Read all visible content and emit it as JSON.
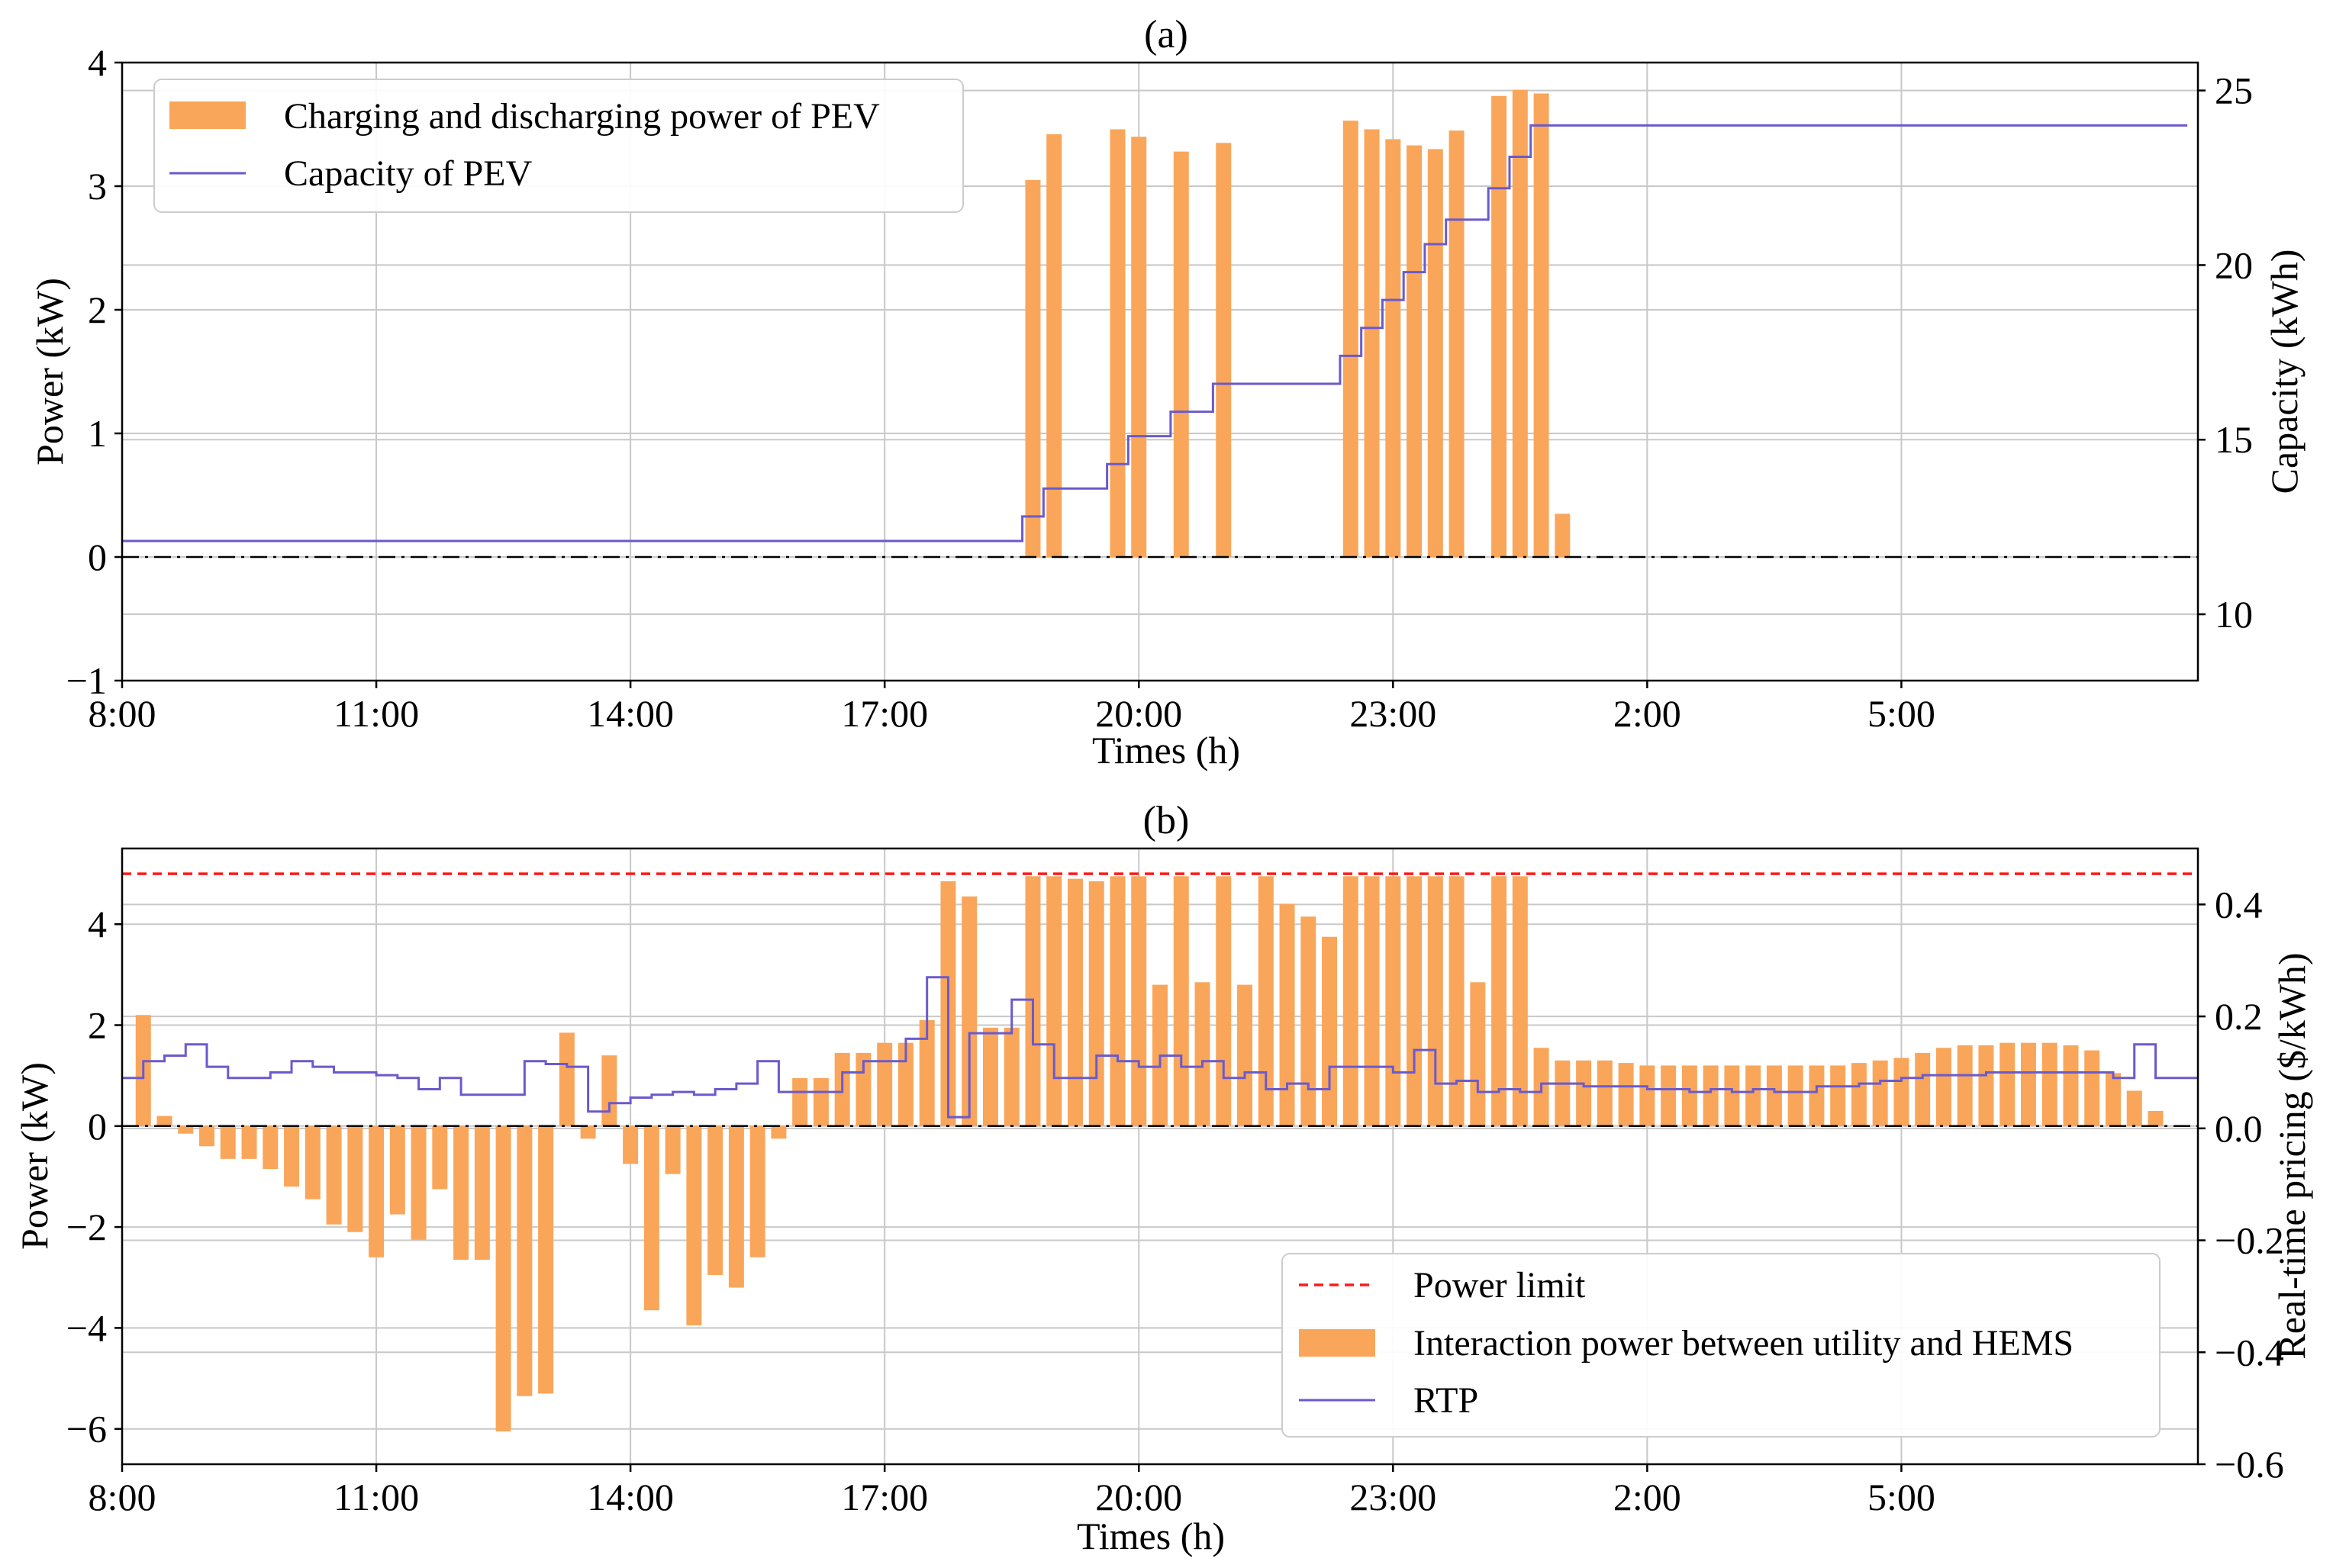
{
  "colors": {
    "bar": "#f9a65a",
    "line": "#6a5acd",
    "limit": "#ff1a1a",
    "grid": "#c8c8c8",
    "zero": "#000000"
  },
  "chart_data": [
    {
      "type": "bar+line",
      "title": "(a)",
      "xlabel": "Times (h)",
      "ylabel": "Power (kW)",
      "ylabel_right": "Capacity (kWh)",
      "ylim": [
        -1,
        4
      ],
      "ylim_right": [
        8.1,
        25.8
      ],
      "xlim": [
        8.0,
        32.5
      ],
      "xticks": [
        8,
        11,
        14,
        17,
        20,
        23,
        26,
        29
      ],
      "xticklabels": [
        "8:00",
        "11:00",
        "14:00",
        "17:00",
        "20:00",
        "23:00",
        "2:00",
        "5:00"
      ],
      "yticks": [
        -1,
        0,
        1,
        2,
        3,
        4
      ],
      "yticklabels": [
        "−1",
        "0",
        "1",
        "2",
        "3",
        "4"
      ],
      "yticks_right": [
        10,
        15,
        20,
        25
      ],
      "yticklabels_right": [
        "10",
        "15",
        "20",
        "25"
      ],
      "legend": {
        "position": "upper-left",
        "bar_label": "Charging and discharging power of PEV",
        "line_label": "Capacity of PEV"
      },
      "bar_series": {
        "name": "Charging and discharging power of PEV",
        "x": [
          18.75,
          19.0,
          19.75,
          20.0,
          20.5,
          21.0,
          22.5,
          22.75,
          23.0,
          23.25,
          23.5,
          23.75,
          24.25,
          24.5,
          24.75,
          25.0
        ],
        "values": [
          3.05,
          3.42,
          3.46,
          3.4,
          3.28,
          3.35,
          3.53,
          3.46,
          3.38,
          3.33,
          3.3,
          3.45,
          3.73,
          3.78,
          3.75,
          0.35
        ]
      },
      "line_series": {
        "name": "Capacity of PEV",
        "x": [
          8.0,
          18.625,
          18.875,
          19.625,
          19.875,
          20.375,
          20.875,
          22.375,
          22.625,
          22.875,
          23.125,
          23.375,
          23.625,
          24.125,
          24.375,
          24.625,
          24.875,
          32.375
        ],
        "values": [
          12.1,
          12.8,
          13.6,
          14.3,
          15.1,
          15.8,
          16.6,
          17.4,
          18.2,
          19.0,
          19.8,
          20.6,
          21.3,
          22.2,
          23.1,
          24.0,
          24.0,
          24.0
        ]
      },
      "reference_line": {
        "value": 0,
        "style": "dash-dot"
      }
    },
    {
      "type": "bar+line",
      "title": "(b)",
      "xlabel": "Times (h)",
      "ylabel": "Power (kW)",
      "ylabel_right": "Real-time pricing ($/kWh)",
      "ylim": [
        -6.7,
        5.5
      ],
      "ylim_right": [
        -0.6,
        0.5
      ],
      "xlim": [
        8.0,
        32.5
      ],
      "xticks": [
        8,
        11,
        14,
        17,
        20,
        23,
        26,
        29
      ],
      "xticklabels": [
        "8:00",
        "11:00",
        "14:00",
        "17:00",
        "20:00",
        "23:00",
        "2:00",
        "5:00"
      ],
      "yticks": [
        -6,
        -4,
        -2,
        0,
        2,
        4
      ],
      "yticklabels": [
        "−6",
        "−4",
        "−2",
        "0",
        "2",
        "4"
      ],
      "yticks_right": [
        -0.6,
        -0.4,
        -0.2,
        0.0,
        0.2,
        0.4
      ],
      "yticklabels_right": [
        "−0.6",
        "−0.4",
        "−0.2",
        "0.0",
        "0.2",
        "0.4"
      ],
      "legend": {
        "position": "lower-right",
        "limit_label": "Power limit",
        "bar_label": "Interaction power between utility and HEMS",
        "line_label": "RTP"
      },
      "power_limit": 5.0,
      "bar_series": {
        "name": "Interaction power between utility and HEMS",
        "x_start": 8.25,
        "x_step": 0.25,
        "values": [
          2.2,
          0.2,
          -0.15,
          -0.4,
          -0.65,
          -0.65,
          -0.85,
          -1.2,
          -1.45,
          -1.95,
          -2.1,
          -2.6,
          -1.75,
          -2.25,
          -1.25,
          -2.65,
          -2.65,
          -6.05,
          -5.35,
          -5.3,
          1.85,
          -0.25,
          1.4,
          -0.75,
          -3.65,
          -0.95,
          -3.95,
          -2.95,
          -3.2,
          -2.6,
          -0.25,
          0.95,
          0.95,
          1.45,
          1.45,
          1.65,
          1.65,
          2.1,
          4.85,
          4.55,
          1.95,
          1.95,
          4.95,
          4.95,
          4.9,
          4.85,
          4.95,
          4.95,
          2.8,
          4.95,
          2.85,
          4.95,
          2.8,
          4.95,
          4.4,
          4.15,
          3.75,
          4.95,
          4.95,
          4.95,
          4.95,
          4.95,
          4.95,
          2.85,
          4.95,
          4.95,
          1.55,
          1.3,
          1.3,
          1.3,
          1.25,
          1.2,
          1.2,
          1.2,
          1.2,
          1.2,
          1.2,
          1.2,
          1.2,
          1.2,
          1.2,
          1.25,
          1.3,
          1.35,
          1.45,
          1.55,
          1.6,
          1.6,
          1.65,
          1.65,
          1.65,
          1.6,
          1.5,
          1.05,
          0.7,
          0.3
        ]
      },
      "line_series": {
        "name": "RTP",
        "x_start": 8.0,
        "x_step": 0.25,
        "values": [
          0.09,
          0.12,
          0.13,
          0.15,
          0.11,
          0.09,
          0.09,
          0.1,
          0.12,
          0.11,
          0.1,
          0.1,
          0.095,
          0.09,
          0.07,
          0.09,
          0.06,
          0.06,
          0.06,
          0.12,
          0.115,
          0.11,
          0.03,
          0.045,
          0.055,
          0.06,
          0.065,
          0.06,
          0.07,
          0.08,
          0.12,
          0.065,
          0.065,
          0.065,
          0.1,
          0.12,
          0.12,
          0.16,
          0.27,
          0.02,
          0.17,
          0.17,
          0.23,
          0.15,
          0.09,
          0.09,
          0.13,
          0.12,
          0.11,
          0.13,
          0.11,
          0.12,
          0.09,
          0.1,
          0.07,
          0.08,
          0.07,
          0.11,
          0.11,
          0.11,
          0.1,
          0.14,
          0.08,
          0.085,
          0.065,
          0.07,
          0.065,
          0.08,
          0.08,
          0.075,
          0.075,
          0.075,
          0.07,
          0.07,
          0.065,
          0.07,
          0.065,
          0.07,
          0.065,
          0.065,
          0.075,
          0.075,
          0.08,
          0.085,
          0.09,
          0.095,
          0.095,
          0.095,
          0.1,
          0.1,
          0.1,
          0.1,
          0.1,
          0.1,
          0.09,
          0.15,
          0.09,
          0.09
        ]
      },
      "reference_line": {
        "value": 0,
        "style": "dash-dot"
      }
    }
  ]
}
